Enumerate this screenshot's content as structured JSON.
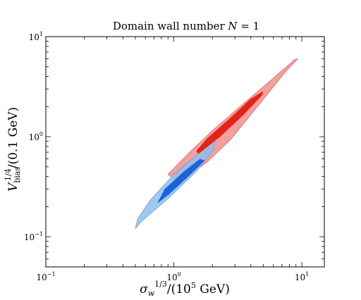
{
  "chart_data": {
    "type": "scatter",
    "title": "Domain wall number N = 1",
    "xlabel": "σ_w^{1/3}/(10^5 GeV)",
    "ylabel": "V_bias^{1/4}/(0.1 GeV)",
    "xscale": "log",
    "yscale": "log",
    "xlim": [
      0.1,
      15
    ],
    "ylim": [
      0.05,
      10
    ],
    "grid": false,
    "xtick_labels": [
      {
        "base": "10",
        "exp": "−1",
        "value": 0.1
      },
      {
        "base": "10",
        "exp": "0",
        "value": 1
      },
      {
        "base": "10",
        "exp": "1",
        "value": 10
      }
    ],
    "ytick_labels": [
      {
        "base": "10",
        "exp": "−1",
        "value": 0.1
      },
      {
        "base": "10",
        "exp": "0",
        "value": 1
      },
      {
        "base": "10",
        "exp": "1",
        "value": 10
      }
    ],
    "series": [
      {
        "kind": "region-outer",
        "color": "#f08f8f",
        "stroke": "#e06060",
        "points": [
          [
            0.9,
            0.42
          ],
          [
            1.3,
            0.68
          ],
          [
            2.0,
            1.15
          ],
          [
            3.3,
            2.0
          ],
          [
            5.5,
            3.5
          ],
          [
            8.8,
            5.9
          ],
          [
            9.3,
            6.0
          ],
          [
            7.5,
            4.5
          ],
          [
            4.5,
            2.0
          ],
          [
            2.8,
            0.95
          ],
          [
            1.8,
            0.55
          ],
          [
            1.1,
            0.35
          ],
          [
            0.9,
            0.42
          ]
        ]
      },
      {
        "kind": "region-outer",
        "color": "#8fbdf0",
        "stroke": "#6f9fde",
        "points": [
          [
            0.5,
            0.12
          ],
          [
            0.55,
            0.14
          ],
          [
            0.9,
            0.24
          ],
          [
            1.5,
            0.45
          ],
          [
            2.05,
            0.75
          ],
          [
            2.1,
            0.95
          ],
          [
            1.6,
            0.7
          ],
          [
            1.0,
            0.42
          ],
          [
            0.65,
            0.23
          ],
          [
            0.52,
            0.15
          ],
          [
            0.5,
            0.12
          ]
        ]
      },
      {
        "kind": "region-inner",
        "color": "#e22318",
        "points": [
          [
            1.55,
            0.67
          ],
          [
            2.3,
            1.0
          ],
          [
            3.5,
            1.65
          ],
          [
            4.9,
            2.6
          ],
          [
            5.0,
            2.85
          ],
          [
            4.0,
            2.4
          ],
          [
            2.7,
            1.5
          ],
          [
            1.8,
            0.95
          ],
          [
            1.5,
            0.72
          ],
          [
            1.55,
            0.67
          ]
        ]
      },
      {
        "kind": "region-inner",
        "color": "#1a63d8",
        "points": [
          [
            0.74,
            0.215
          ],
          [
            0.9,
            0.26
          ],
          [
            1.3,
            0.4
          ],
          [
            1.75,
            0.58
          ],
          [
            1.6,
            0.6
          ],
          [
            1.2,
            0.45
          ],
          [
            0.85,
            0.3
          ],
          [
            0.74,
            0.215
          ]
        ]
      }
    ]
  }
}
